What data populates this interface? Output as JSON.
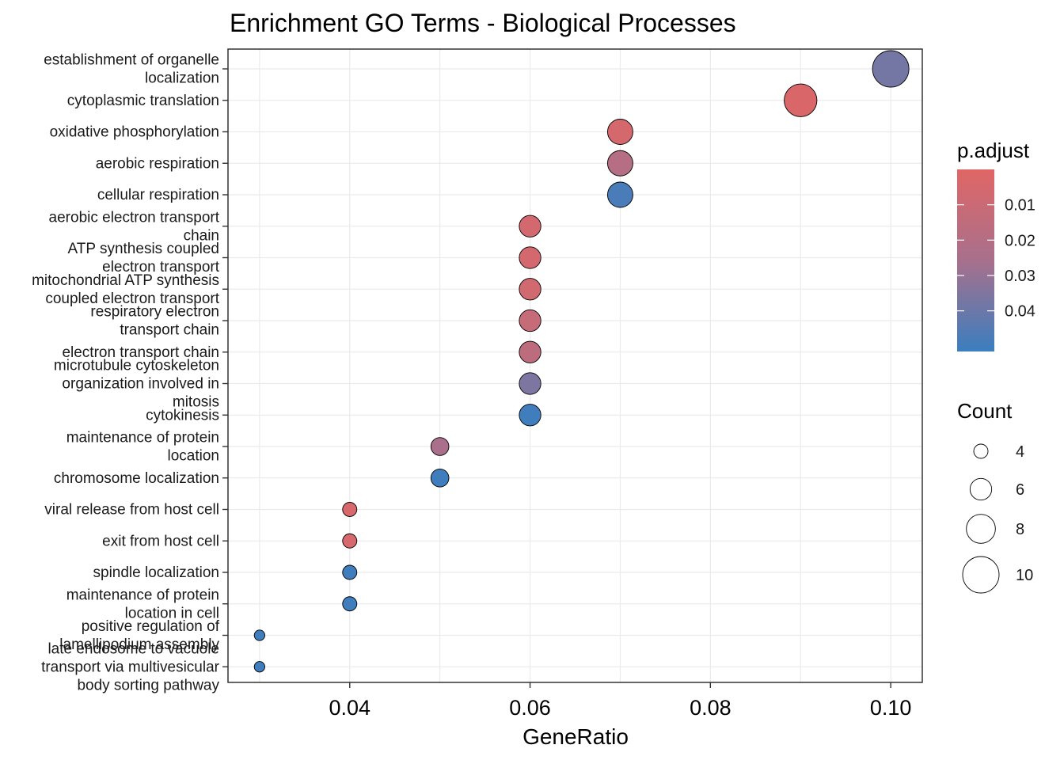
{
  "chart_data": {
    "type": "scatter",
    "title": "Enrichment GO Terms - Biological Processes",
    "xlabel": "GeneRatio",
    "ylabel": "",
    "xlim": [
      0.0265,
      0.1035
    ],
    "xticks": [
      0.04,
      0.06,
      0.08,
      0.1
    ],
    "xtick_labels": [
      "0.04",
      "0.06",
      "0.08",
      "0.10"
    ],
    "grid": true,
    "legend_position": "right",
    "points": [
      {
        "term": "establishment of organelle\nlocalization",
        "gene_ratio": 0.1,
        "count": 10,
        "p_adjust": 0.038
      },
      {
        "term": "cytoplasmic translation",
        "gene_ratio": 0.09,
        "count": 9,
        "p_adjust": 0.003
      },
      {
        "term": "oxidative phosphorylation",
        "gene_ratio": 0.07,
        "count": 7,
        "p_adjust": 0.005
      },
      {
        "term": "aerobic respiration",
        "gene_ratio": 0.07,
        "count": 7,
        "p_adjust": 0.02
      },
      {
        "term": "cellular respiration",
        "gene_ratio": 0.07,
        "count": 7,
        "p_adjust": 0.048
      },
      {
        "term": "aerobic electron transport\nchain",
        "gene_ratio": 0.06,
        "count": 6,
        "p_adjust": 0.006
      },
      {
        "term": "ATP synthesis coupled\nelectron transport",
        "gene_ratio": 0.06,
        "count": 6,
        "p_adjust": 0.006
      },
      {
        "term": "mitochondrial ATP synthesis\ncoupled electron transport",
        "gene_ratio": 0.06,
        "count": 6,
        "p_adjust": 0.007
      },
      {
        "term": "respiratory electron\ntransport chain",
        "gene_ratio": 0.06,
        "count": 6,
        "p_adjust": 0.012
      },
      {
        "term": "electron transport chain",
        "gene_ratio": 0.06,
        "count": 6,
        "p_adjust": 0.016
      },
      {
        "term": "microtubule cytoskeleton\norganization involved in\nmitosis",
        "gene_ratio": 0.06,
        "count": 6,
        "p_adjust": 0.036
      },
      {
        "term": "cytokinesis",
        "gene_ratio": 0.06,
        "count": 6,
        "p_adjust": 0.05
      },
      {
        "term": "maintenance of protein\nlocation",
        "gene_ratio": 0.05,
        "count": 5,
        "p_adjust": 0.025
      },
      {
        "term": "chromosome localization",
        "gene_ratio": 0.05,
        "count": 5,
        "p_adjust": 0.05
      },
      {
        "term": "viral release from host cell",
        "gene_ratio": 0.04,
        "count": 4,
        "p_adjust": 0.004
      },
      {
        "term": "exit from host cell",
        "gene_ratio": 0.04,
        "count": 4,
        "p_adjust": 0.004
      },
      {
        "term": "spindle localization",
        "gene_ratio": 0.04,
        "count": 4,
        "p_adjust": 0.05
      },
      {
        "term": "maintenance of protein\nlocation in cell",
        "gene_ratio": 0.04,
        "count": 4,
        "p_adjust": 0.05
      },
      {
        "term": "positive regulation of\nlamellipodium assembly",
        "gene_ratio": 0.03,
        "count": 3,
        "p_adjust": 0.05
      },
      {
        "term": "late endosome to vacuole\ntransport via multivesicular\nbody sorting pathway",
        "gene_ratio": 0.03,
        "count": 3,
        "p_adjust": 0.05
      }
    ],
    "color_legend": {
      "title": "p.adjust",
      "min": 0.0,
      "max": 0.0515,
      "low_color": "#e06666",
      "mid_color": "#a8708c",
      "high_color": "#3a7ebf",
      "ticks": [
        0.01,
        0.02,
        0.03,
        0.04
      ],
      "tick_labels": [
        "0.01",
        "0.02",
        "0.03",
        "0.04"
      ]
    },
    "size_legend": {
      "title": "Count",
      "values": [
        4,
        6,
        8,
        10
      ],
      "labels": [
        "4",
        "6",
        "8",
        "10"
      ]
    }
  }
}
